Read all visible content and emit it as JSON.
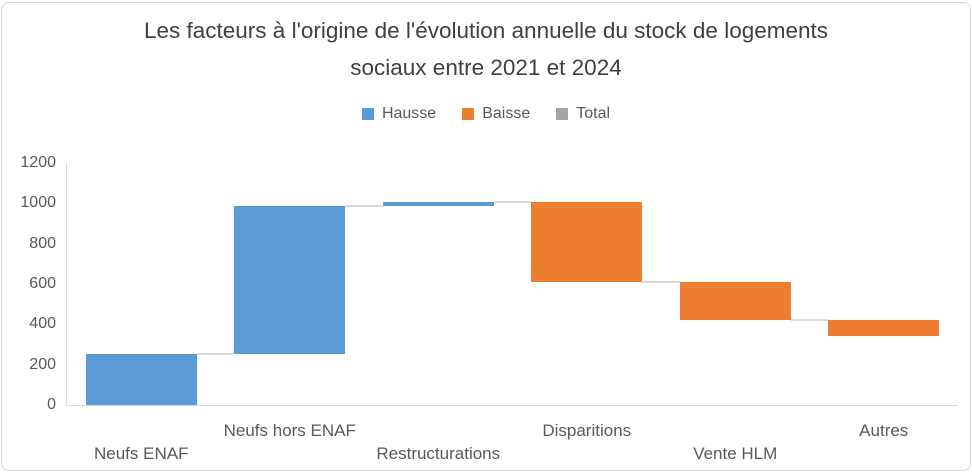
{
  "title": "Les facteurs à l'origine de l'évolution annuelle du stock de logements\nsociaux entre 2021 et 2024",
  "legend": {
    "items": [
      {
        "label": "Hausse",
        "color": "#5B9BD5"
      },
      {
        "label": "Baisse",
        "color": "#ED7D31"
      },
      {
        "label": "Total",
        "color": "#A5A5A5"
      }
    ]
  },
  "colors": {
    "hausse": "#5B9BD5",
    "baisse": "#ED7D31",
    "total": "#A5A5A5",
    "connector": "#D9D9D9",
    "axis_line": "#D9D9D9",
    "axis_text": "#595959",
    "title_text": "#404040"
  },
  "chart_data": {
    "type": "bar",
    "subtype": "waterfall",
    "title": "Les facteurs à l'origine de l'évolution annuelle du stock de logements sociaux entre 2021 et 2024",
    "categories": [
      "Neufs ENAF",
      "Neufs hors ENAF",
      "Restructurations",
      "Disparitions",
      "Vente HLM",
      "Autres"
    ],
    "values": [
      255,
      730,
      20,
      -395,
      -190,
      -80
    ],
    "cumulative_start": [
      0,
      255,
      985,
      1005,
      610,
      420
    ],
    "cumulative_end": [
      255,
      985,
      1005,
      610,
      420,
      340
    ],
    "series": [
      {
        "name": "Hausse",
        "color": "#5B9BD5",
        "categories": [
          "Neufs ENAF",
          "Neufs hors ENAF",
          "Restructurations"
        ]
      },
      {
        "name": "Baisse",
        "color": "#ED7D31",
        "categories": [
          "Disparitions",
          "Vente HLM",
          "Autres"
        ]
      },
      {
        "name": "Total",
        "color": "#A5A5A5",
        "categories": []
      }
    ],
    "y_ticks": [
      0,
      200,
      400,
      600,
      800,
      1000,
      1200
    ],
    "ylim": [
      0,
      1200
    ],
    "xlabel": "",
    "ylabel": "",
    "grid": false,
    "legend_position": "top"
  }
}
